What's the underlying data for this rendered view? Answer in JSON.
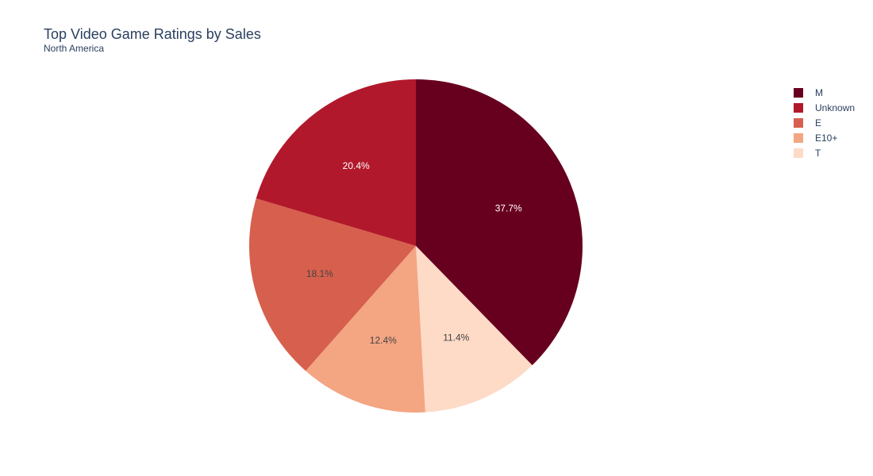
{
  "chart_data": {
    "type": "pie",
    "title": "Top Video Game Ratings by Sales",
    "subtitle": "North America",
    "direction": "clockwise",
    "start": "12 o'clock",
    "slices": [
      {
        "label": "M",
        "percent": 37.7,
        "color": "#67001f",
        "text_color": "#ffffff"
      },
      {
        "label": "T",
        "percent": 11.4,
        "color": "#fddbc7",
        "text_color": "#444444"
      },
      {
        "label": "E10+",
        "percent": 12.4,
        "color": "#f4a582",
        "text_color": "#444444"
      },
      {
        "label": "E",
        "percent": 18.1,
        "color": "#d6604d",
        "text_color": "#444444"
      },
      {
        "label": "Unknown",
        "percent": 20.4,
        "color": "#b2182b",
        "text_color": "#ffffff"
      }
    ],
    "legend": {
      "placement": "top-right",
      "order": [
        "M",
        "Unknown",
        "E",
        "E10+",
        "T"
      ]
    }
  }
}
